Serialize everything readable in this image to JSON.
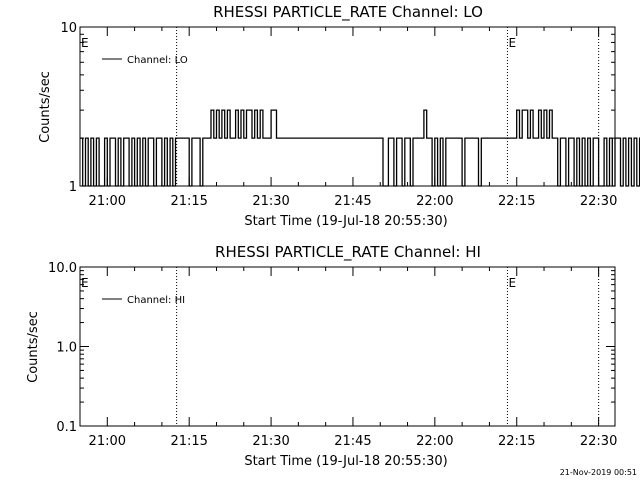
{
  "footer": {
    "timestamp": "21-Nov-2019 00:51"
  },
  "chart_data": [
    {
      "type": "line",
      "title": "RHESSI PARTICLE_RATE Channel: LO",
      "xlabel": "Start Time (19-Jul-18 20:55:30)",
      "ylabel": "Counts/sec",
      "yscale": "log",
      "ylim": [
        1,
        10
      ],
      "xlim_min": [
        -0.5,
        97.5
      ],
      "xticks": [
        {
          "min": 4.5,
          "label": "21:00"
        },
        {
          "min": 19.5,
          "label": "21:15"
        },
        {
          "min": 34.5,
          "label": "21:30"
        },
        {
          "min": 49.5,
          "label": "21:45"
        },
        {
          "min": 64.5,
          "label": "22:00"
        },
        {
          "min": 79.5,
          "label": "22:15"
        },
        {
          "min": 94.5,
          "label": "22:30"
        }
      ],
      "yticks": [
        {
          "value": 1,
          "label": "1"
        },
        {
          "value": 10,
          "label": "10"
        }
      ],
      "event_lines_min": [
        17.2,
        77.8,
        94.5
      ],
      "flags": [
        {
          "min": -0.5,
          "label": "E"
        },
        {
          "min": 77.8,
          "label": "E"
        }
      ],
      "legend": {
        "position": "top-left",
        "entries": [
          "Channel: LO"
        ]
      },
      "series": [
        {
          "name": "Channel: LO",
          "color": "#000000",
          "x_min_range": [
            -0.5,
            93.8
          ],
          "x_step_min": 0.5,
          "values": [
            2,
            1,
            2,
            1,
            2,
            1,
            2,
            1,
            1,
            2,
            1,
            2,
            2,
            1,
            2,
            1,
            2,
            2,
            1,
            2,
            1,
            2,
            1,
            2,
            1,
            2,
            2,
            1,
            2,
            2,
            1,
            2,
            1,
            2,
            1,
            2,
            2,
            2,
            2,
            2,
            1,
            2,
            2,
            2,
            1,
            2,
            2,
            2,
            3,
            2,
            3,
            2,
            3,
            2,
            3,
            2,
            2,
            3,
            2,
            3,
            2,
            3,
            3,
            2,
            3,
            2,
            3,
            2,
            2,
            2,
            3,
            3,
            2,
            2,
            2,
            2,
            2,
            2,
            2,
            2,
            2,
            2,
            2,
            2,
            2,
            2,
            2,
            2,
            2,
            2,
            2,
            2,
            2,
            2,
            2,
            2,
            2,
            2,
            2,
            2,
            2,
            2,
            2,
            2,
            2,
            2,
            2,
            2,
            2,
            2,
            2,
            1,
            1,
            2,
            2,
            1,
            2,
            2,
            1,
            2,
            2,
            1,
            2,
            2,
            2,
            2,
            3,
            2,
            2,
            1,
            2,
            1,
            2,
            1,
            2,
            2,
            2,
            2,
            2,
            2,
            1,
            2,
            2,
            2,
            2,
            2,
            1,
            2,
            2,
            2,
            2,
            2,
            2,
            2,
            2,
            2,
            2,
            2,
            2,
            2,
            3,
            2,
            3,
            3,
            2,
            3,
            2,
            2,
            3,
            2,
            3,
            2,
            3,
            2,
            2,
            1,
            2,
            2,
            1,
            2,
            2,
            1,
            2,
            1,
            2,
            1,
            2,
            1,
            2,
            2,
            1,
            1,
            2,
            1,
            2,
            1,
            2,
            2,
            1,
            2,
            1,
            2,
            1,
            2,
            1,
            2,
            2,
            2,
            1,
            2,
            1,
            2,
            2,
            1,
            2,
            1,
            2,
            1,
            2,
            2,
            1,
            2,
            2,
            2,
            1
          ]
        }
      ]
    },
    {
      "type": "line",
      "title": "RHESSI PARTICLE_RATE Channel: HI",
      "xlabel": "Start Time (19-Jul-18 20:55:30)",
      "ylabel": "Counts/sec",
      "yscale": "log",
      "ylim": [
        0.1,
        10
      ],
      "xlim_min": [
        -0.5,
        97.5
      ],
      "xticks": [
        {
          "min": 4.5,
          "label": "21:00"
        },
        {
          "min": 19.5,
          "label": "21:15"
        },
        {
          "min": 34.5,
          "label": "21:30"
        },
        {
          "min": 49.5,
          "label": "21:45"
        },
        {
          "min": 64.5,
          "label": "22:00"
        },
        {
          "min": 79.5,
          "label": "22:15"
        },
        {
          "min": 94.5,
          "label": "22:30"
        }
      ],
      "yticks": [
        {
          "value": 0.1,
          "label": "0.1"
        },
        {
          "value": 1,
          "label": "1.0"
        },
        {
          "value": 10,
          "label": "10.0"
        }
      ],
      "event_lines_min": [
        17.2,
        77.8,
        94.5
      ],
      "flags": [
        {
          "min": -0.5,
          "label": "E"
        },
        {
          "min": 77.8,
          "label": "E"
        }
      ],
      "legend": {
        "position": "top-left",
        "entries": [
          "Channel: HI"
        ]
      },
      "series": [
        {
          "name": "Channel: HI",
          "color": "#000000",
          "values": []
        }
      ]
    }
  ]
}
